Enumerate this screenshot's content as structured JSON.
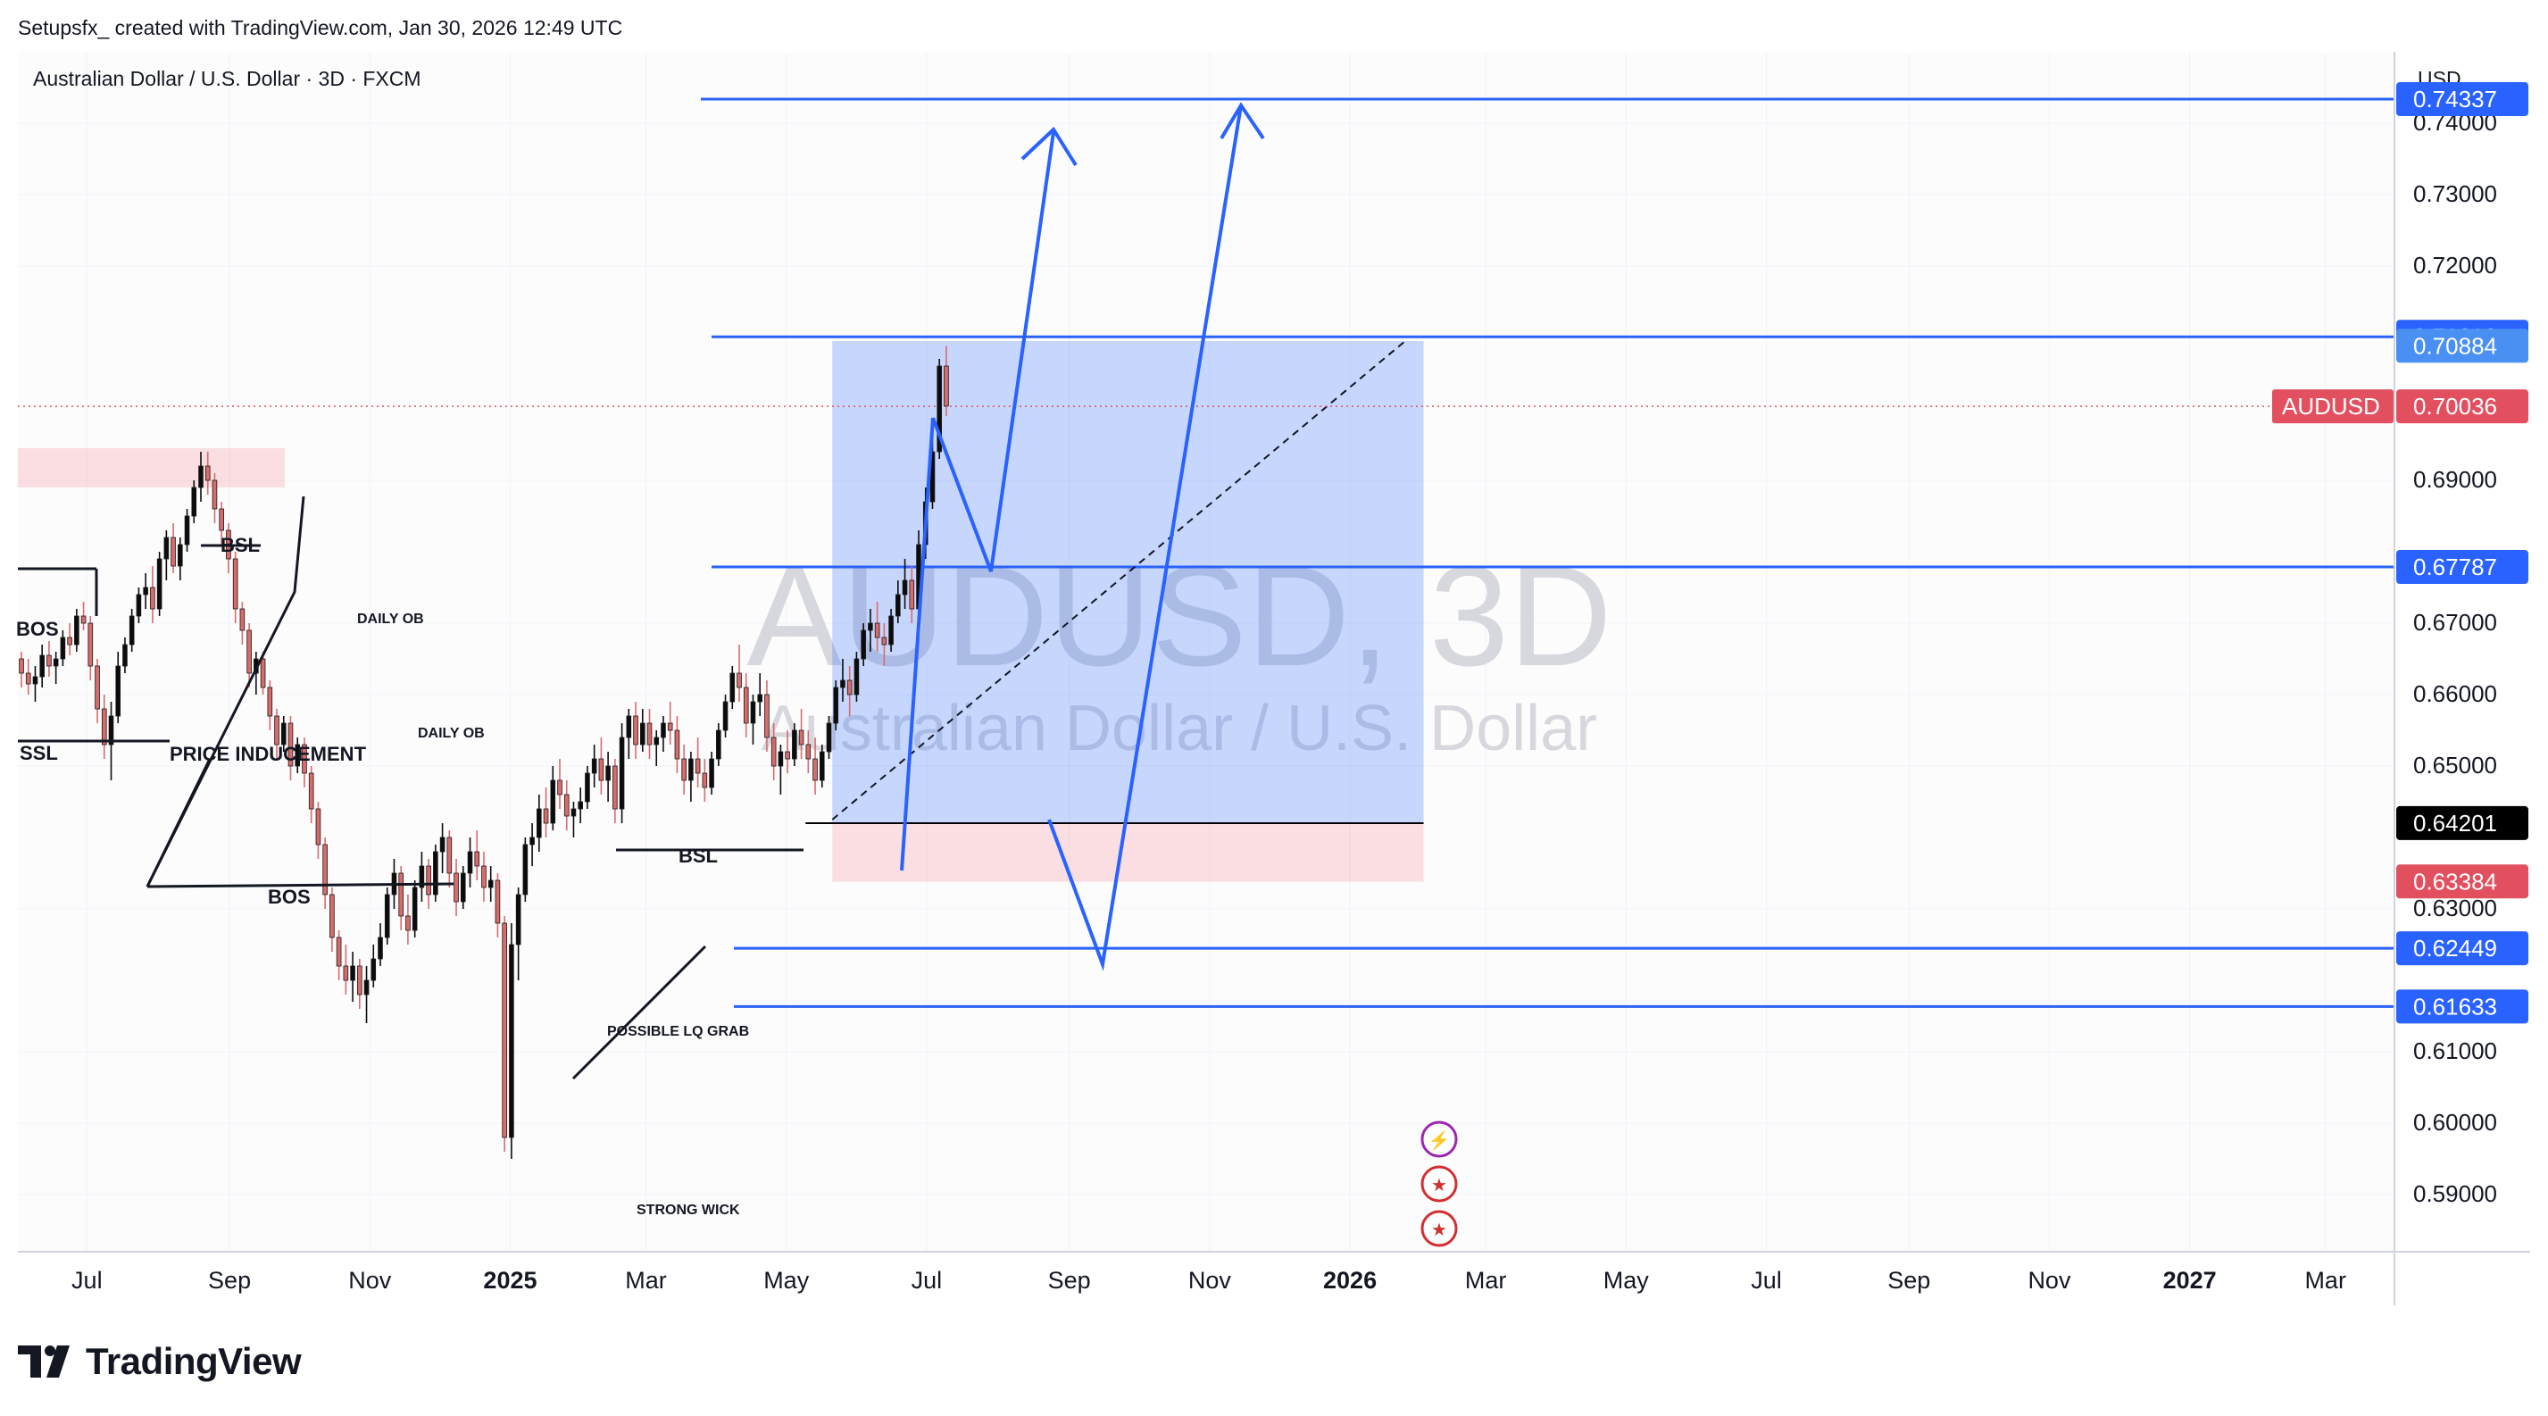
{
  "header": {
    "attribution": "Setupsfx_ created with TradingView.com, Jan 30, 2026 12:49 UTC"
  },
  "footer": {
    "brand": "TradingView"
  },
  "chart_data": {
    "type": "candlestick",
    "title": "Australian Dollar / U.S. Dollar · 3D · FXCM",
    "watermark": {
      "symbol": "AUDUSD, 3D",
      "name": "Australian Dollar / U.S. Dollar"
    },
    "currency": "USD",
    "ylim": [
      0.582,
      0.75
    ],
    "y_ticks": [
      {
        "v": 0.74,
        "label": "0.74000"
      },
      {
        "v": 0.73,
        "label": "0.73000"
      },
      {
        "v": 0.72,
        "label": "0.72000"
      },
      {
        "v": 0.69,
        "label": "0.69000"
      },
      {
        "v": 0.67,
        "label": "0.67000"
      },
      {
        "v": 0.66,
        "label": "0.66000"
      },
      {
        "v": 0.65,
        "label": "0.65000"
      },
      {
        "v": 0.63,
        "label": "0.63000"
      },
      {
        "v": 0.61,
        "label": "0.61000"
      },
      {
        "v": 0.6,
        "label": "0.60000"
      },
      {
        "v": 0.59,
        "label": "0.59000"
      }
    ],
    "x_range": [
      "2024-06-01",
      "2027-03-31"
    ],
    "x_ticks": [
      {
        "date": "2024-07-01",
        "label": "Jul",
        "bold": false
      },
      {
        "date": "2024-09-01",
        "label": "Sep",
        "bold": false
      },
      {
        "date": "2024-11-01",
        "label": "Nov",
        "bold": false
      },
      {
        "date": "2025-01-01",
        "label": "2025",
        "bold": true
      },
      {
        "date": "2025-03-01",
        "label": "Mar",
        "bold": false
      },
      {
        "date": "2025-05-01",
        "label": "May",
        "bold": false
      },
      {
        "date": "2025-07-01",
        "label": "Jul",
        "bold": false
      },
      {
        "date": "2025-09-01",
        "label": "Sep",
        "bold": false
      },
      {
        "date": "2025-11-01",
        "label": "Nov",
        "bold": false
      },
      {
        "date": "2026-01-01",
        "label": "2026",
        "bold": true
      },
      {
        "date": "2026-03-01",
        "label": "Mar",
        "bold": false
      },
      {
        "date": "2026-05-01",
        "label": "May",
        "bold": false
      },
      {
        "date": "2026-07-01",
        "label": "Jul",
        "bold": false
      },
      {
        "date": "2026-09-01",
        "label": "Sep",
        "bold": false
      },
      {
        "date": "2026-11-01",
        "label": "Nov",
        "bold": false
      },
      {
        "date": "2027-01-01",
        "label": "2027",
        "bold": true
      },
      {
        "date": "2027-03-01",
        "label": "Mar",
        "bold": false
      }
    ],
    "candles": {
      "start": "2024-06-01",
      "interval_days": 3,
      "up_color": "#0c0c0c",
      "down_color": "#d96b6b",
      "ohlc": [
        [
          0.665,
          0.666,
          0.661,
          0.663
        ],
        [
          0.663,
          0.665,
          0.66,
          0.6615
        ],
        [
          0.6615,
          0.664,
          0.659,
          0.6625
        ],
        [
          0.6625,
          0.667,
          0.661,
          0.6655
        ],
        [
          0.6655,
          0.6675,
          0.6625,
          0.664
        ],
        [
          0.664,
          0.666,
          0.6615,
          0.665
        ],
        [
          0.665,
          0.669,
          0.664,
          0.668
        ],
        [
          0.668,
          0.67,
          0.6655,
          0.667
        ],
        [
          0.667,
          0.672,
          0.666,
          0.671
        ],
        [
          0.671,
          0.673,
          0.669,
          0.67
        ],
        [
          0.67,
          0.671,
          0.662,
          0.664
        ],
        [
          0.664,
          0.665,
          0.656,
          0.658
        ],
        [
          0.658,
          0.66,
          0.651,
          0.653
        ],
        [
          0.653,
          0.659,
          0.648,
          0.657
        ],
        [
          0.657,
          0.666,
          0.656,
          0.664
        ],
        [
          0.664,
          0.668,
          0.663,
          0.667
        ],
        [
          0.667,
          0.672,
          0.666,
          0.671
        ],
        [
          0.671,
          0.675,
          0.67,
          0.674
        ],
        [
          0.674,
          0.677,
          0.672,
          0.675
        ],
        [
          0.675,
          0.678,
          0.67,
          0.672
        ],
        [
          0.672,
          0.68,
          0.671,
          0.679
        ],
        [
          0.679,
          0.683,
          0.676,
          0.682
        ],
        [
          0.682,
          0.684,
          0.677,
          0.678
        ],
        [
          0.678,
          0.682,
          0.676,
          0.681
        ],
        [
          0.681,
          0.686,
          0.68,
          0.685
        ],
        [
          0.685,
          0.69,
          0.684,
          0.689
        ],
        [
          0.689,
          0.694,
          0.687,
          0.692
        ],
        [
          0.692,
          0.694,
          0.688,
          0.69
        ],
        [
          0.69,
          0.691,
          0.684,
          0.686
        ],
        [
          0.686,
          0.687,
          0.681,
          0.683
        ],
        [
          0.683,
          0.684,
          0.677,
          0.679
        ],
        [
          0.679,
          0.68,
          0.67,
          0.672
        ],
        [
          0.672,
          0.673,
          0.667,
          0.669
        ],
        [
          0.669,
          0.67,
          0.661,
          0.663
        ],
        [
          0.663,
          0.666,
          0.66,
          0.665
        ],
        [
          0.665,
          0.666,
          0.66,
          0.661
        ],
        [
          0.661,
          0.662,
          0.655,
          0.657
        ],
        [
          0.657,
          0.658,
          0.651,
          0.653
        ],
        [
          0.653,
          0.657,
          0.652,
          0.656
        ],
        [
          0.656,
          0.657,
          0.648,
          0.65
        ],
        [
          0.65,
          0.654,
          0.649,
          0.653
        ],
        [
          0.653,
          0.654,
          0.647,
          0.649
        ],
        [
          0.649,
          0.65,
          0.642,
          0.644
        ],
        [
          0.644,
          0.645,
          0.637,
          0.639
        ],
        [
          0.639,
          0.64,
          0.63,
          0.632
        ],
        [
          0.632,
          0.633,
          0.624,
          0.626
        ],
        [
          0.626,
          0.627,
          0.62,
          0.622
        ],
        [
          0.622,
          0.625,
          0.618,
          0.62
        ],
        [
          0.62,
          0.624,
          0.617,
          0.622
        ],
        [
          0.622,
          0.623,
          0.616,
          0.618
        ],
        [
          0.618,
          0.622,
          0.614,
          0.62
        ],
        [
          0.62,
          0.625,
          0.619,
          0.623
        ],
        [
          0.623,
          0.628,
          0.622,
          0.626
        ],
        [
          0.626,
          0.633,
          0.625,
          0.632
        ],
        [
          0.632,
          0.637,
          0.63,
          0.635
        ],
        [
          0.635,
          0.636,
          0.627,
          0.629
        ],
        [
          0.629,
          0.632,
          0.625,
          0.627
        ],
        [
          0.627,
          0.634,
          0.626,
          0.633
        ],
        [
          0.633,
          0.638,
          0.631,
          0.636
        ],
        [
          0.636,
          0.637,
          0.63,
          0.632
        ],
        [
          0.632,
          0.639,
          0.631,
          0.638
        ],
        [
          0.638,
          0.642,
          0.635,
          0.64
        ],
        [
          0.64,
          0.641,
          0.633,
          0.635
        ],
        [
          0.635,
          0.637,
          0.629,
          0.631
        ],
        [
          0.631,
          0.636,
          0.63,
          0.635
        ],
        [
          0.635,
          0.64,
          0.633,
          0.638
        ],
        [
          0.638,
          0.641,
          0.634,
          0.636
        ],
        [
          0.636,
          0.638,
          0.631,
          0.633
        ],
        [
          0.633,
          0.636,
          0.631,
          0.634
        ],
        [
          0.634,
          0.635,
          0.626,
          0.628
        ],
        [
          0.628,
          0.629,
          0.596,
          0.598
        ],
        [
          0.598,
          0.628,
          0.595,
          0.625
        ],
        [
          0.625,
          0.633,
          0.62,
          0.632
        ],
        [
          0.632,
          0.64,
          0.631,
          0.639
        ],
        [
          0.639,
          0.642,
          0.636,
          0.64
        ],
        [
          0.64,
          0.646,
          0.638,
          0.644
        ],
        [
          0.644,
          0.647,
          0.64,
          0.642
        ],
        [
          0.642,
          0.65,
          0.641,
          0.648
        ],
        [
          0.648,
          0.651,
          0.644,
          0.646
        ],
        [
          0.646,
          0.648,
          0.641,
          0.643
        ],
        [
          0.643,
          0.645,
          0.64,
          0.644
        ],
        [
          0.644,
          0.647,
          0.642,
          0.645
        ],
        [
          0.645,
          0.65,
          0.644,
          0.649
        ],
        [
          0.649,
          0.653,
          0.647,
          0.651
        ],
        [
          0.651,
          0.654,
          0.646,
          0.648
        ],
        [
          0.648,
          0.652,
          0.645,
          0.65
        ],
        [
          0.65,
          0.651,
          0.642,
          0.644
        ],
        [
          0.644,
          0.656,
          0.642,
          0.654
        ],
        [
          0.654,
          0.658,
          0.651,
          0.657
        ],
        [
          0.657,
          0.659,
          0.651,
          0.653
        ],
        [
          0.653,
          0.658,
          0.652,
          0.656
        ],
        [
          0.656,
          0.658,
          0.651,
          0.653
        ],
        [
          0.653,
          0.655,
          0.65,
          0.654
        ],
        [
          0.654,
          0.657,
          0.652,
          0.656
        ],
        [
          0.656,
          0.659,
          0.653,
          0.655
        ],
        [
          0.655,
          0.657,
          0.649,
          0.651
        ],
        [
          0.651,
          0.653,
          0.646,
          0.648
        ],
        [
          0.648,
          0.652,
          0.645,
          0.651
        ],
        [
          0.651,
          0.654,
          0.647,
          0.649
        ],
        [
          0.649,
          0.651,
          0.645,
          0.647
        ],
        [
          0.647,
          0.652,
          0.646,
          0.651
        ],
        [
          0.651,
          0.656,
          0.65,
          0.655
        ],
        [
          0.655,
          0.66,
          0.654,
          0.659
        ],
        [
          0.659,
          0.664,
          0.658,
          0.663
        ],
        [
          0.663,
          0.667,
          0.659,
          0.661
        ],
        [
          0.661,
          0.663,
          0.654,
          0.656
        ],
        [
          0.656,
          0.66,
          0.653,
          0.659
        ],
        [
          0.659,
          0.663,
          0.657,
          0.66
        ],
        [
          0.66,
          0.662,
          0.652,
          0.654
        ],
        [
          0.654,
          0.656,
          0.648,
          0.65
        ],
        [
          0.65,
          0.653,
          0.646,
          0.652
        ],
        [
          0.652,
          0.655,
          0.649,
          0.651
        ],
        [
          0.651,
          0.656,
          0.65,
          0.655
        ],
        [
          0.655,
          0.658,
          0.651,
          0.653
        ],
        [
          0.653,
          0.655,
          0.649,
          0.651
        ],
        [
          0.651,
          0.654,
          0.646,
          0.648
        ],
        [
          0.648,
          0.653,
          0.647,
          0.652
        ],
        [
          0.652,
          0.657,
          0.651,
          0.656
        ],
        [
          0.656,
          0.662,
          0.655,
          0.661
        ],
        [
          0.661,
          0.665,
          0.659,
          0.662
        ],
        [
          0.662,
          0.664,
          0.657,
          0.66
        ],
        [
          0.66,
          0.666,
          0.659,
          0.665
        ],
        [
          0.665,
          0.67,
          0.664,
          0.669
        ],
        [
          0.669,
          0.672,
          0.666,
          0.67
        ],
        [
          0.67,
          0.673,
          0.666,
          0.668
        ],
        [
          0.668,
          0.67,
          0.664,
          0.667
        ],
        [
          0.667,
          0.672,
          0.666,
          0.671
        ],
        [
          0.671,
          0.676,
          0.67,
          0.674
        ],
        [
          0.674,
          0.679,
          0.672,
          0.676
        ],
        [
          0.676,
          0.678,
          0.67,
          0.672
        ],
        [
          0.672,
          0.683,
          0.671,
          0.681
        ],
        [
          0.681,
          0.689,
          0.679,
          0.687
        ],
        [
          0.687,
          0.696,
          0.686,
          0.694
        ],
        [
          0.694,
          0.707,
          0.693,
          0.706
        ],
        [
          0.706,
          0.7088,
          0.699,
          0.7004
        ]
      ]
    },
    "price_lines": [
      {
        "value": 0.74337,
        "label": "0.74337"
      },
      {
        "value": 0.7101,
        "label": "0.71010"
      },
      {
        "value": 0.67787,
        "label": "0.67787"
      },
      {
        "value": 0.62449,
        "label": "0.62449"
      },
      {
        "value": 0.61633,
        "label": "0.61633"
      }
    ],
    "boxes": [
      {
        "name": "blue-range-box",
        "from": "2025-05-21",
        "to": "2026-02-02",
        "top": 0.7095,
        "bottom": 0.642,
        "color": "#2962ff",
        "opacity": 0.25
      },
      {
        "name": "red-zone-box",
        "from": "2025-05-21",
        "to": "2026-02-02",
        "top": 0.642,
        "bottom": 0.6338,
        "color": "#f23645",
        "opacity": 0.15
      },
      {
        "name": "left-supply-zone",
        "from": "2024-06-01",
        "to": "2024-09-25",
        "top": 0.6945,
        "bottom": 0.689,
        "color": "#f23645",
        "opacity": 0.15
      }
    ],
    "current_price": {
      "value": 0.70036,
      "symbol": "AUDUSD",
      "label": "0.70036",
      "color": "#e25060"
    },
    "axis_badges": [
      {
        "value": 0.70884,
        "label": "0.70884",
        "color": "#4a90f2"
      },
      {
        "value": 0.64201,
        "label": "0.64201",
        "color": "#000000"
      },
      {
        "value": 0.63384,
        "label": "0.63384",
        "color": "#e25060"
      }
    ],
    "annotations": [
      "BSL",
      "BOS",
      "SSL",
      "PRICE INDUCEMENT",
      "DAILY OB",
      "DAILY OB",
      "BOS",
      "BSL",
      "POSSIBLE LQ GRAB",
      "STRONG WICK"
    ],
    "colors": {
      "accent": "#2962ff",
      "grid": "#f0f3fa",
      "background": "#fcfcfd"
    }
  }
}
